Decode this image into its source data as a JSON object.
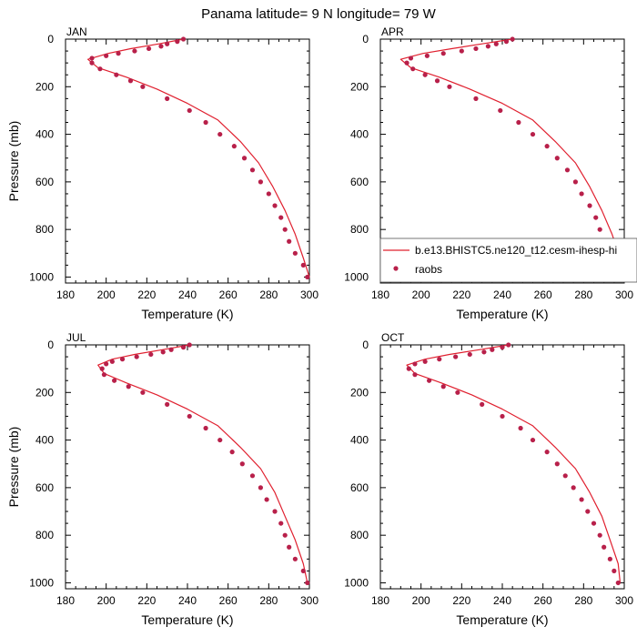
{
  "title": "Panama  latitude= 9 N longitude= 79 W",
  "colors": {
    "model": "#e0202f",
    "obs": "#b8204a",
    "axis": "#000000"
  },
  "legend": {
    "model_label": "b.e13.BHISTC5.ne120_t12.cesm-ihesp-hi",
    "obs_label": "raobs",
    "panel": "APR"
  },
  "chart_data": [
    {
      "type": "line",
      "panel": "JAN",
      "xlabel": "Temperature (K)",
      "ylabel": "Pressure (mb)",
      "xlim": [
        180,
        300
      ],
      "ylim": [
        1025,
        0
      ],
      "xticks": [
        180,
        200,
        220,
        240,
        260,
        280,
        300
      ],
      "yticks": [
        0,
        200,
        400,
        600,
        800,
        1000
      ],
      "series": [
        {
          "kind": "line",
          "points": [
            [
              238,
              0
            ],
            [
              226,
              20
            ],
            [
              212,
              40
            ],
            [
              201,
              60
            ],
            [
              191,
              85
            ],
            [
              196,
              120
            ],
            [
              210,
              160
            ],
            [
              225,
              210
            ],
            [
              240,
              270
            ],
            [
              255,
              340
            ],
            [
              266,
              430
            ],
            [
              275,
              520
            ],
            [
              282,
              620
            ],
            [
              288,
              720
            ],
            [
              293,
              820
            ],
            [
              297,
              920
            ],
            [
              300,
              1000
            ]
          ]
        },
        {
          "kind": "scatter",
          "points": [
            [
              238,
              0
            ],
            [
              235,
              10
            ],
            [
              230,
              20
            ],
            [
              227,
              30
            ],
            [
              221,
              40
            ],
            [
              214,
              50
            ],
            [
              206,
              60
            ],
            [
              200,
              70
            ],
            [
              193,
              80
            ],
            [
              193,
              100
            ],
            [
              197,
              125
            ],
            [
              205,
              150
            ],
            [
              212,
              175
            ],
            [
              218,
              200
            ],
            [
              230,
              250
            ],
            [
              241,
              300
            ],
            [
              249,
              350
            ],
            [
              256,
              400
            ],
            [
              263,
              450
            ],
            [
              268,
              500
            ],
            [
              272,
              550
            ],
            [
              276,
              600
            ],
            [
              280,
              650
            ],
            [
              283,
              700
            ],
            [
              286,
              750
            ],
            [
              288,
              800
            ],
            [
              290,
              850
            ],
            [
              293,
              900
            ],
            [
              297,
              950
            ],
            [
              299,
              1000
            ]
          ]
        }
      ]
    },
    {
      "type": "line",
      "panel": "APR",
      "xlabel": "Temperature (K)",
      "ylabel": "",
      "xlim": [
        180,
        300
      ],
      "ylim": [
        1025,
        0
      ],
      "xticks": [
        180,
        200,
        220,
        240,
        260,
        280,
        300
      ],
      "yticks": [
        0,
        200,
        400,
        600,
        800,
        1000
      ],
      "series": [
        {
          "kind": "line",
          "points": [
            [
              245,
              0
            ],
            [
              230,
              20
            ],
            [
              215,
              40
            ],
            [
              201,
              60
            ],
            [
              190,
              85
            ],
            [
              195,
              120
            ],
            [
              209,
              160
            ],
            [
              224,
              210
            ],
            [
              240,
              270
            ],
            [
              255,
              340
            ],
            [
              266,
              430
            ],
            [
              276,
              520
            ],
            [
              283,
              620
            ],
            [
              289,
              720
            ],
            [
              294,
              820
            ],
            [
              298,
              920
            ],
            [
              300,
              1000
            ]
          ]
        },
        {
          "kind": "scatter",
          "points": [
            [
              245,
              0
            ],
            [
              242,
              10
            ],
            [
              237,
              20
            ],
            [
              233,
              30
            ],
            [
              227,
              40
            ],
            [
              220,
              50
            ],
            [
              211,
              60
            ],
            [
              203,
              70
            ],
            [
              195,
              80
            ],
            [
              193,
              100
            ],
            [
              196,
              125
            ],
            [
              202,
              150
            ],
            [
              208,
              175
            ],
            [
              214,
              200
            ],
            [
              227,
              250
            ],
            [
              239,
              300
            ],
            [
              248,
              350
            ],
            [
              255,
              400
            ],
            [
              262,
              450
            ],
            [
              267,
              500
            ],
            [
              272,
              550
            ],
            [
              276,
              600
            ],
            [
              279,
              650
            ],
            [
              283,
              700
            ],
            [
              286,
              750
            ],
            [
              288,
              800
            ],
            [
              291,
              850
            ],
            [
              294,
              900
            ],
            [
              297,
              950
            ],
            [
              299,
              1000
            ]
          ]
        }
      ]
    },
    {
      "type": "line",
      "panel": "JUL",
      "xlabel": "Temperature (K)",
      "ylabel": "Pressure (mb)",
      "xlim": [
        180,
        300
      ],
      "ylim": [
        1025,
        0
      ],
      "xticks": [
        180,
        200,
        220,
        240,
        260,
        280,
        300
      ],
      "yticks": [
        0,
        200,
        400,
        600,
        800,
        1000
      ],
      "series": [
        {
          "kind": "line",
          "points": [
            [
              241,
              0
            ],
            [
              228,
              20
            ],
            [
              214,
              40
            ],
            [
              203,
              60
            ],
            [
              196,
              85
            ],
            [
              199,
              120
            ],
            [
              210,
              160
            ],
            [
              225,
              210
            ],
            [
              240,
              270
            ],
            [
              255,
              340
            ],
            [
              266,
              430
            ],
            [
              276,
              520
            ],
            [
              283,
              620
            ],
            [
              288,
              720
            ],
            [
              293,
              820
            ],
            [
              297,
              920
            ],
            [
              299,
              1000
            ]
          ]
        },
        {
          "kind": "scatter",
          "points": [
            [
              241,
              0
            ],
            [
              238,
              10
            ],
            [
              232,
              20
            ],
            [
              228,
              30
            ],
            [
              222,
              40
            ],
            [
              215,
              50
            ],
            [
              208,
              60
            ],
            [
              203,
              70
            ],
            [
              200,
              80
            ],
            [
              198,
              100
            ],
            [
              199,
              125
            ],
            [
              204,
              150
            ],
            [
              211,
              175
            ],
            [
              218,
              200
            ],
            [
              230,
              250
            ],
            [
              241,
              300
            ],
            [
              249,
              350
            ],
            [
              256,
              400
            ],
            [
              262,
              450
            ],
            [
              267,
              500
            ],
            [
              272,
              550
            ],
            [
              276,
              600
            ],
            [
              279,
              650
            ],
            [
              283,
              700
            ],
            [
              286,
              750
            ],
            [
              288,
              800
            ],
            [
              290,
              850
            ],
            [
              293,
              900
            ],
            [
              297,
              950
            ],
            [
              299,
              1000
            ]
          ]
        }
      ]
    },
    {
      "type": "line",
      "panel": "OCT",
      "xlabel": "Temperature (K)",
      "ylabel": "",
      "xlim": [
        180,
        300
      ],
      "ylim": [
        1025,
        0
      ],
      "xticks": [
        180,
        200,
        220,
        240,
        260,
        280,
        300
      ],
      "yticks": [
        0,
        200,
        400,
        600,
        800,
        1000
      ],
      "series": [
        {
          "kind": "line",
          "points": [
            [
              243,
              0
            ],
            [
              229,
              20
            ],
            [
              214,
              40
            ],
            [
              202,
              60
            ],
            [
              193,
              85
            ],
            [
              197,
              120
            ],
            [
              210,
              160
            ],
            [
              225,
              210
            ],
            [
              240,
              270
            ],
            [
              255,
              340
            ],
            [
              266,
              430
            ],
            [
              276,
              520
            ],
            [
              283,
              620
            ],
            [
              289,
              720
            ],
            [
              293,
              820
            ],
            [
              297,
              920
            ],
            [
              298,
              1000
            ]
          ]
        },
        {
          "kind": "scatter",
          "points": [
            [
              243,
              0
            ],
            [
              240,
              10
            ],
            [
              235,
              20
            ],
            [
              231,
              30
            ],
            [
              224,
              40
            ],
            [
              217,
              50
            ],
            [
              209,
              60
            ],
            [
              202,
              70
            ],
            [
              197,
              80
            ],
            [
              194,
              100
            ],
            [
              197,
              125
            ],
            [
              204,
              150
            ],
            [
              211,
              175
            ],
            [
              218,
              200
            ],
            [
              230,
              250
            ],
            [
              240,
              300
            ],
            [
              249,
              350
            ],
            [
              255,
              400
            ],
            [
              262,
              450
            ],
            [
              267,
              500
            ],
            [
              271,
              550
            ],
            [
              275,
              600
            ],
            [
              279,
              650
            ],
            [
              282,
              700
            ],
            [
              285,
              750
            ],
            [
              288,
              800
            ],
            [
              290,
              850
            ],
            [
              293,
              900
            ],
            [
              295,
              950
            ],
            [
              297,
              1000
            ]
          ]
        }
      ]
    }
  ]
}
